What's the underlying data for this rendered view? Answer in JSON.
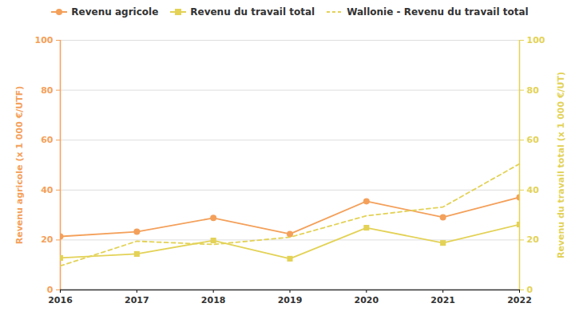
{
  "chart_data": {
    "type": "line",
    "x": [
      2016,
      2017,
      2018,
      2019,
      2020,
      2021,
      2022
    ],
    "xlim": [
      2016,
      2022
    ],
    "xticks": [
      2016,
      2017,
      2018,
      2019,
      2020,
      2021,
      2022
    ],
    "ylim": [
      0,
      100
    ],
    "yticks": [
      0,
      20,
      40,
      60,
      80,
      100
    ],
    "y2lim": [
      0,
      100
    ],
    "y2ticks": [
      0,
      20,
      40,
      60,
      80,
      100
    ],
    "ylabel": "Revenu agricole (x 1 000 €/UTF)",
    "y2label": "Revenu du travail total (x 1 000 €/UT)",
    "grid": true,
    "legend": "top",
    "series": [
      {
        "name": "Revenu agricole",
        "color": "#f4a05a",
        "marker": "circle",
        "line_style": "solid",
        "values": [
          21.4,
          23.3,
          28.8,
          22.4,
          35.5,
          29.1,
          37.1
        ]
      },
      {
        "name": "Revenu du travail total",
        "color": "#e3d256",
        "marker": "square",
        "line_style": "solid",
        "axis": "y2",
        "values": [
          12.8,
          14.4,
          19.8,
          12.5,
          24.9,
          18.8,
          26.2
        ]
      },
      {
        "name": "Wallonie - Revenu du travail total",
        "color": "#e3d256",
        "marker": "none",
        "line_style": "dashed",
        "axis": "y2",
        "values": [
          9.6,
          19.5,
          18.2,
          21.1,
          29.7,
          33.2,
          50.5
        ]
      }
    ]
  }
}
